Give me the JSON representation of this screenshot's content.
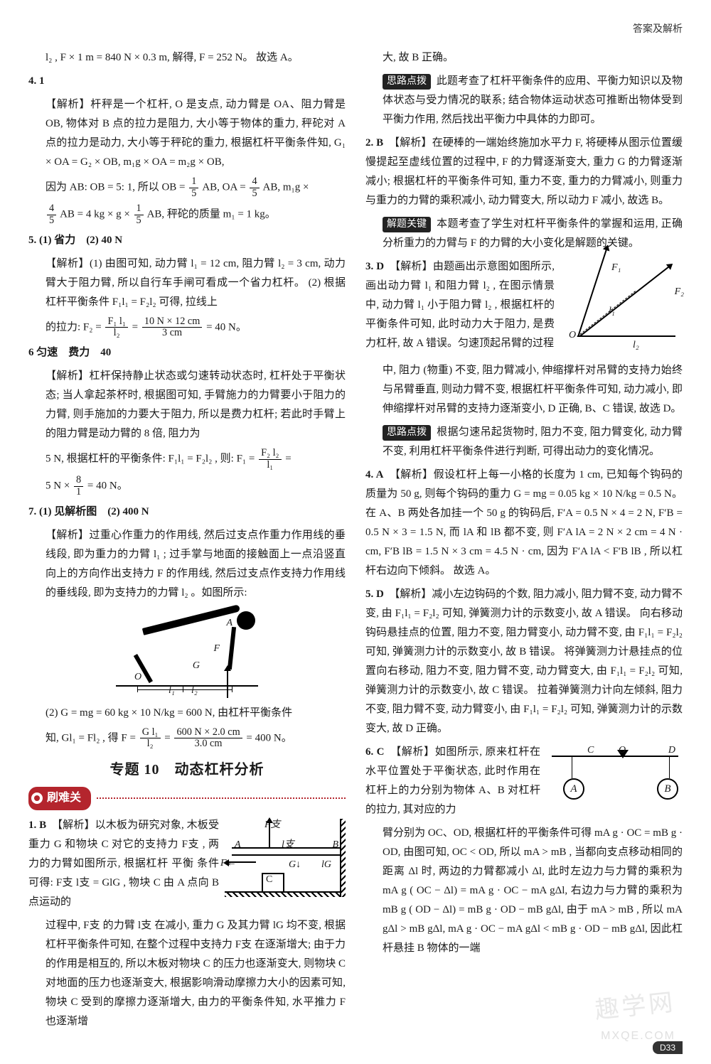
{
  "header_right": "答案及解析",
  "left": {
    "p1": "l₂ , F × 1 m = 840 N × 0.3 m, 解得, F = 252 N。 故选 A。",
    "q4_num": "4. 1",
    "q4_expl": "【解析】杆秤是一个杠杆, O 是支点, 动力臂是 OA、阻力臂是 OB, 物体对 B 点的拉力是阻力, 大小等于物体的重力, 秤砣对 A 点的拉力是动力, 大小等于秤砣的重力, 根据杠杆平衡条件知, G₁ × OA = G₂ × OB, m₁g × OA = m₂g × OB,",
    "q4_line2a": "因为 AB: OB = 5: 1, 所以 OB = ",
    "q4_line2b": "AB, OA = ",
    "q4_line2c": "AB, m₁g ×",
    "q4_line3a": "AB = 4 kg × g × ",
    "q4_line3b": "AB, 秤砣的质量 m₁ = 1 kg。",
    "q5_num": "5. (1) 省力　(2) 40 N",
    "q5_expl": "【解析】(1) 由图可知, 动力臂 l₁ = 12 cm, 阻力臂 l₂ = 3 cm, 动力臂大于阻力臂, 所以自行车手闸可看成一个省力杠杆。 (2) 根据杠杆平衡条件 F₁l₁ = F₂l₂ 可得, 拉线上",
    "q5_line2a": "的拉力: F₂ = ",
    "q5_line2b": " = ",
    "q5_line2c": " = 40 N。",
    "q6_num": "6 匀速　费力　40",
    "q6_expl": "【解析】杠杆保持静止状态或匀速转动状态时, 杠杆处于平衡状态; 当人拿起茶杯时, 根据图可知, 手臂施力的力臂要小于阻力的力臂, 则手施加的力要大于阻力, 所以是费力杠杆; 若此时手臂上的阻力臂是动力臂的 8 倍, 阻力为",
    "q6_line2a": "5 N, 根据杠杆的平衡条件: F₁l₁ = F₂l₂ , 则: F₁ = ",
    "q6_line2b": " =",
    "q6_line3a": "5 N × ",
    "q6_line3b": " = 40 N。",
    "q7_num": "7. (1) 见解析图　(2) 400 N",
    "q7_expl": "【解析】过重心作重力的作用线, 然后过支点作重力作用线的垂线段, 即为重力的力臂 l₁ ; 过手掌与地面的接触面上一点沿竖直向上的方向作出支持力 F 的作用线, 然后过支点作支持力作用线的垂线段, 即为支持力的力臂 l₂ 。如图所示:",
    "q7_calc_a": "(2) G = mg = 60 kg × 10 N/kg = 600 N, 由杠杆平衡条件",
    "q7_calc_b1": "知, Gl₁ = Fl₂ , 得 F = ",
    "q7_calc_b2": " = ",
    "q7_calc_b3": " = 400 N。",
    "section_title": "专题 10　动态杠杆分析",
    "banner": "刷难关",
    "r1_num": "1. B",
    "r1_a": "　【解析】以木板为研究对象, 木板受重力 G 和物块 C 对它的支持力 F支 , 两力的力臂如图所示, 根据杠杆 平衡 条件 可得: F支 l支 = GlG , 物块 C 由 A 点向 B 点运动的",
    "r1_b": "过程中, F支 的力臂 l支 在减小, 重力 G 及其力臂 lG 均不变, 根据杠杆平衡条件可知, 在整个过程中支持力 F支 在逐渐增大; 由于力的作用是相互的, 所以木板对物块 C 的压力也逐渐变大, 则物块 C 对地面的压力也逐渐变大, 根据影响滑动摩擦力大小的因素可知, 物块 C 受到的摩擦力逐渐增大, 由力的平衡条件知, 水平推力 F 也逐渐增"
  },
  "right": {
    "r1_c": "大, 故 B 正确。",
    "r1_tip_lbl": "思路点拨",
    "r1_tip": " 此题考查了杠杆平衡条件的应用、平衡力知识以及物体状态与受力情况的联系; 结合物体运动状态可推断出物体受到平衡力作用, 然后找出平衡力中具体的力即可。",
    "r2_num": "2. B",
    "r2_a": "　【解析】在硬棒的一端始终施加水平力 F, 将硬棒从图示位置缓慢提起至虚线位置的过程中, F 的力臂逐渐变大, 重力 G 的力臂逐渐减小; 根据杠杆的平衡条件可知, 重力不变, 重力的力臂减小, 则重力与重力的力臂的乘积减小, 动力臂变大, 所以动力 F 减小, 故选 B。",
    "r2_key_lbl": "解题关键",
    "r2_key": " 本题考查了学生对杠杆平衡条件的掌握和运用, 正确分析重力的力臂与 F 的力臂的大小变化是解题的关键。",
    "r3_num": "3. D",
    "r3_a": "　【解析】由题画出示意图如图所示, 画出动力臂 l₁ 和阻力臂 l₂ , 在图示情景中, 动力臂 l₁ 小于阻力臂 l₂ , 根据杠杆的平衡条件可知, 此时动力大于阻力, 是费力杠杆, 故 A 错误。匀速顶起吊臂的过程",
    "r3_b": "中, 阻力 (物重) 不变, 阻力臂减小, 伸缩撑杆对吊臂的支持力始终与吊臂垂直, 则动力臂不变, 根据杠杆平衡条件可知, 动力减小, 即伸缩撑杆对吊臂的支持力逐渐变小, D 正确, B、C 错误, 故选 D。",
    "r3_tip_lbl": "思路点拨",
    "r3_tip": " 根据匀速吊起货物时, 阻力不变, 阻力臂变化, 动力臂不变, 利用杠杆平衡条件进行判断, 可得出动力的变化情况。",
    "r4_num": "4. A",
    "r4_a": "　【解析】假设杠杆上每一小格的长度为 1 cm, 已知每个钩码的质量为 50 g, 则每个钩码的重力 G = mg = 0.05 kg × 10 N/kg = 0.5 N。 在 A、B 两处各加挂一个 50 g 的钩码后, F′A = 0.5 N × 4 = 2 N, F′B = 0.5 N × 3 = 1.5 N, 而 lA 和 lB 都不变, 则 F′A lA = 2 N × 2 cm = 4 N · cm, F′B lB = 1.5 N × 3 cm = 4.5 N · cm, 因为 F′A lA < F′B lB , 所以杠杆右边向下倾斜。 故选 A。",
    "r5_num": "5. D",
    "r5_a": "　【解析】减小左边钩码的个数, 阻力减小, 阻力臂不变, 动力臂不变, 由 F₁l₁ = F₂l₂ 可知, 弹簧测力计的示数变小, 故 A 错误。 向右移动钩码悬挂点的位置, 阻力不变, 阻力臂变小, 动力臂不变, 由 F₁l₁ = F₂l₂ 可知, 弹簧测力计的示数变小, 故 B 错误。 将弹簧测力计悬挂点的位置向右移动, 阻力不变, 阻力臂不变, 动力臂变大, 由 F₁l₁ = F₂l₂ 可知, 弹簧测力计的示数变小, 故 C 错误。 拉着弹簧测力计向左倾斜, 阻力不变, 阻力臂不变, 动力臂变小, 由 F₁l₁ = F₂l₂ 可知, 弹簧测力计的示数变大, 故 D 正确。",
    "r6_num": "6. C",
    "r6_a": "　【解析】如图所示, 原来杠杆在水平位置处于平衡状态, 此时作用在杠杆上的力分别为物体 A、B 对杠杆的拉力, 其对应的力",
    "r6_b": "臂分别为 OC、OD, 根据杠杆的平衡条件可得 mA g · OC = mB g · OD, 由图可知, OC < OD, 所以 mA > mB , 当都向支点移动相同的距离 Δl 时, 两边的力臂都减小 Δl, 此时左边力与力臂的乘积为 mA g ( OC − Δl) = mA g · OC − mA gΔl, 右边力与力臂的乘积为 mB g ( OD − Δl) = mB g · OD − mB gΔl, 由于 mA > mB , 所以 mA gΔl > mB gΔl, mA g · OC − mA gΔl < mB g · OD − mB gΔl, 因此杠杆悬挂 B 物体的一端"
  },
  "fractions": {
    "one_fifth_num": "1",
    "one_fifth_den": "5",
    "four_fifth_num": "4",
    "four_fifth_den": "5",
    "F1l1_num": "F₁ l₁",
    "F1l1_den": "l₂",
    "ten12_num": "10 N × 12 cm",
    "ten12_den": "3 cm",
    "F2l2_num": "F₂ l₂",
    "F2l2_den": "l₁",
    "eight_over_one_num": "8",
    "eight_over_one_den": "1",
    "Gl1_num": "G l₁",
    "Gl1_den": "l₂",
    "six_hundred_num": "600 N × 2.0 cm",
    "six_hundred_den": "3.0 cm"
  },
  "fig_pushup": {
    "O": "O",
    "A": "A",
    "F": "F",
    "G": "G",
    "l1": "l₁",
    "l2": "l₂"
  },
  "fig_plank": {
    "Fsup": "F支",
    "A": "A",
    "B": "B",
    "G": "G↓",
    "C": "C",
    "F": "F←",
    "lz": "l支",
    "lG": "lG"
  },
  "fig_crane": {
    "O": "O",
    "F1": "F₁",
    "F2": "F₂",
    "l1": "l₁",
    "l2": "l₂"
  },
  "fig_bal": {
    "C": "C",
    "O": "O",
    "D": "D",
    "A": "A",
    "B": "B"
  },
  "page_number": "D33",
  "wm1": "趣学网",
  "wm2": "MXQE.COM",
  "colors": {
    "text": "#1a1a1a",
    "accent": "#b4252d",
    "tag_bg": "#222222",
    "tag_fg": "#ffffff"
  }
}
